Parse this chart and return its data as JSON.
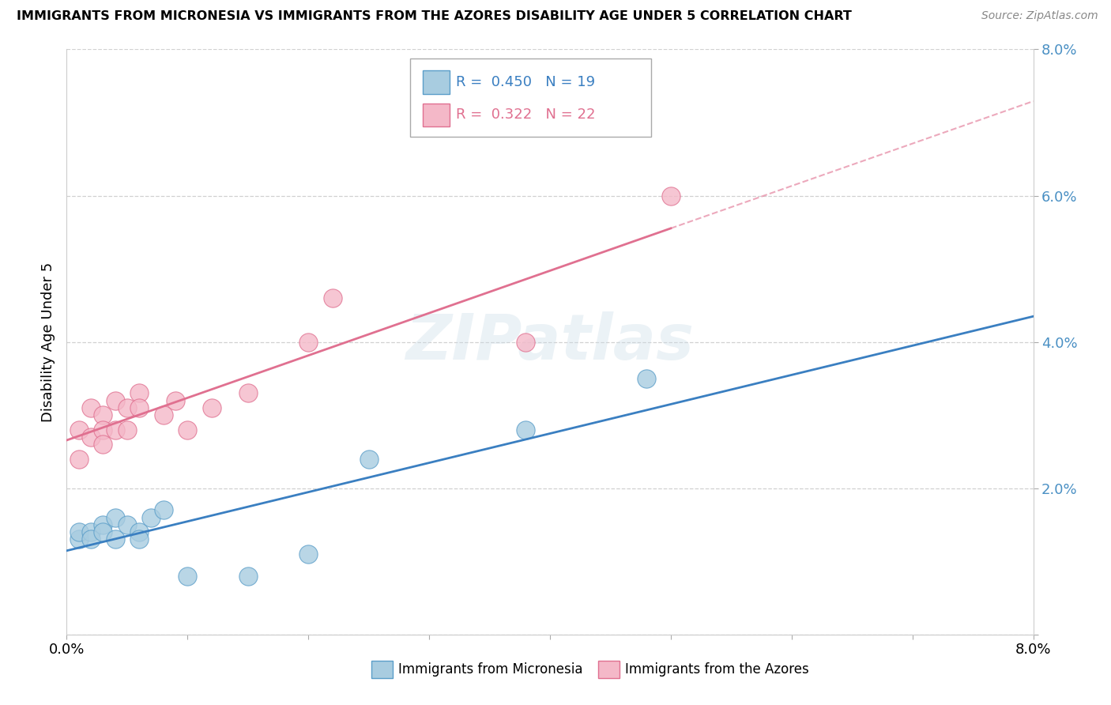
{
  "title": "IMMIGRANTS FROM MICRONESIA VS IMMIGRANTS FROM THE AZORES DISABILITY AGE UNDER 5 CORRELATION CHART",
  "source": "Source: ZipAtlas.com",
  "ylabel": "Disability Age Under 5",
  "xlim": [
    0.0,
    0.08
  ],
  "ylim": [
    0.0,
    0.08
  ],
  "legend1_R": "0.450",
  "legend1_N": "19",
  "legend2_R": "0.322",
  "legend2_N": "22",
  "blue_fill": "#a8cce0",
  "blue_edge": "#5b9ec9",
  "pink_fill": "#f4b8c8",
  "pink_edge": "#e07090",
  "blue_line_color": "#3a7fc1",
  "pink_line_color": "#e07090",
  "watermark": "ZIPatlas",
  "blue_scatter_x": [
    0.001,
    0.001,
    0.002,
    0.002,
    0.003,
    0.003,
    0.004,
    0.004,
    0.005,
    0.006,
    0.006,
    0.007,
    0.008,
    0.01,
    0.015,
    0.02,
    0.025,
    0.038,
    0.048
  ],
  "blue_scatter_y": [
    0.013,
    0.014,
    0.014,
    0.013,
    0.015,
    0.014,
    0.016,
    0.013,
    0.015,
    0.014,
    0.013,
    0.016,
    0.017,
    0.008,
    0.008,
    0.011,
    0.024,
    0.028,
    0.035
  ],
  "pink_scatter_x": [
    0.001,
    0.001,
    0.002,
    0.002,
    0.003,
    0.003,
    0.003,
    0.004,
    0.004,
    0.005,
    0.005,
    0.006,
    0.006,
    0.008,
    0.009,
    0.01,
    0.012,
    0.015,
    0.02,
    0.022,
    0.038,
    0.05
  ],
  "pink_scatter_y": [
    0.028,
    0.024,
    0.031,
    0.027,
    0.03,
    0.028,
    0.026,
    0.032,
    0.028,
    0.031,
    0.028,
    0.033,
    0.031,
    0.03,
    0.032,
    0.028,
    0.031,
    0.033,
    0.04,
    0.046,
    0.04,
    0.06
  ],
  "background_color": "#ffffff",
  "grid_color": "#cccccc"
}
